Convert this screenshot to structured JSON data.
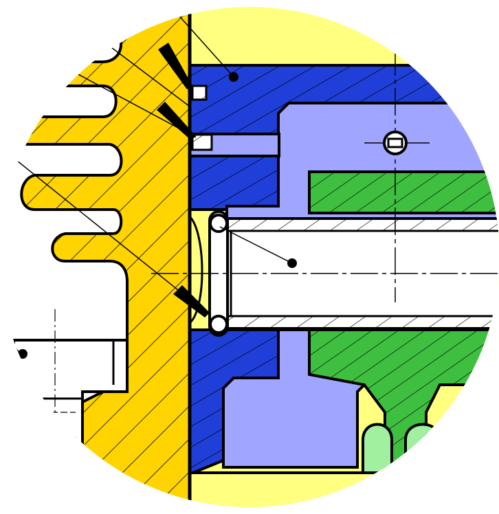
{
  "diagram": {
    "colors": {
      "background": "#ffffff",
      "body_yellow": "#ffd400",
      "area_light_yellow": "#ffff80",
      "part_blue": "#1f3fd8",
      "cavity_lavender": "#a0a6ff",
      "part_green": "#3fbf3f",
      "light_green": "#a0f0a0",
      "tube_white": "#ffffff",
      "outline": "#000000"
    },
    "parts": [
      {
        "id": "cooling-fins",
        "fill": "body_yellow",
        "hatched": true
      },
      {
        "id": "cylinder-wall",
        "fill": "body_yellow",
        "hatched": true
      },
      {
        "id": "seal-housing",
        "fill": "part_blue",
        "hatched": true
      },
      {
        "id": "inner-cavity",
        "fill": "cavity_lavender",
        "hatched": false
      },
      {
        "id": "upper-green-block",
        "fill": "part_green",
        "hatched": true
      },
      {
        "id": "lower-green-block",
        "fill": "part_green",
        "hatched": true
      },
      {
        "id": "shaft-tube",
        "fill": "tube_white",
        "hatched": false
      },
      {
        "id": "o-ring",
        "fill": "tube_white",
        "hatched": false
      },
      {
        "id": "lower-bore",
        "fill": "light_green",
        "hatched": false
      }
    ],
    "leader_markers": [
      "pointer-arrow",
      "pointer-arrow",
      "pointer-arrow",
      "dot",
      "dot",
      "dot"
    ]
  }
}
